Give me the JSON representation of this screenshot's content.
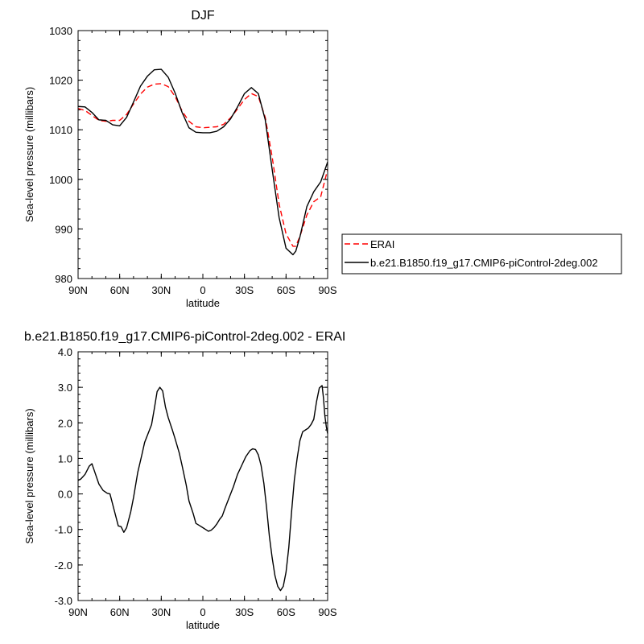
{
  "chart_data": [
    {
      "type": "line",
      "title": "DJF",
      "xlabel": "latitude",
      "ylabel": "Sea-level pressure (millibars)",
      "xlim": [
        -90,
        90
      ],
      "ylim": [
        980,
        1030
      ],
      "x_ticks": [
        -90,
        -60,
        -30,
        0,
        30,
        60,
        90
      ],
      "x_tick_labels": [
        "90N",
        "60N",
        "30N",
        "0",
        "30S",
        "60S",
        "90S"
      ],
      "y_ticks": [
        980,
        990,
        1000,
        1010,
        1020,
        1030
      ],
      "y_tick_labels": [
        "980",
        "990",
        "1000",
        "1010",
        "1020",
        "1030"
      ],
      "grid": false,
      "legend_position": "right",
      "series": [
        {
          "name": "ERAI",
          "color": "#ff0000",
          "dash": "dashed",
          "x": [
            -90,
            -85,
            -80,
            -75,
            -70,
            -65,
            -60,
            -55,
            -50,
            -45,
            -40,
            -35,
            -30,
            -25,
            -20,
            -15,
            -10,
            -5,
            0,
            5,
            10,
            15,
            20,
            25,
            30,
            35,
            40,
            45,
            50,
            55,
            60,
            65,
            67,
            70,
            75,
            80,
            85,
            90
          ],
          "y": [
            1014.3,
            1013.9,
            1012.9,
            1011.9,
            1011.7,
            1011.9,
            1011.9,
            1013.1,
            1015.2,
            1017.2,
            1018.6,
            1019.2,
            1019.3,
            1018.7,
            1016.7,
            1013.8,
            1011.7,
            1010.6,
            1010.4,
            1010.5,
            1010.6,
            1011.1,
            1012.4,
            1014.2,
            1016.1,
            1017.3,
            1016.7,
            1012.5,
            1004.5,
            995.0,
            989.0,
            986.5,
            986.5,
            988.5,
            992.8,
            995.5,
            996.5,
            1002.0
          ]
        },
        {
          "name": "b.e21.B1850.f19_g17.CMIP6-piControl-2deg.002",
          "color": "#000000",
          "dash": "solid",
          "x": [
            -90,
            -85,
            -80,
            -75,
            -70,
            -65,
            -60,
            -55,
            -50,
            -45,
            -40,
            -35,
            -30,
            -25,
            -20,
            -15,
            -10,
            -5,
            0,
            5,
            10,
            15,
            20,
            25,
            30,
            35,
            40,
            45,
            50,
            55,
            60,
            65,
            67,
            70,
            75,
            80,
            85,
            90
          ],
          "y": [
            1014.7,
            1014.6,
            1013.5,
            1012.0,
            1011.9,
            1011.0,
            1010.8,
            1012.5,
            1015.6,
            1018.8,
            1020.8,
            1022.1,
            1022.2,
            1020.6,
            1017.4,
            1013.5,
            1010.4,
            1009.5,
            1009.4,
            1009.4,
            1009.7,
            1010.6,
            1012.2,
            1014.6,
            1017.3,
            1018.5,
            1017.3,
            1012.0,
            1002.0,
            992.3,
            986.1,
            984.8,
            985.5,
            988.4,
            994.5,
            997.5,
            999.5,
            1003.5
          ]
        }
      ]
    },
    {
      "type": "line",
      "title": "b.e21.B1850.f19_g17.CMIP6-piControl-2deg.002 - ERAI",
      "xlabel": "latitude",
      "ylabel": "Sea-level pressure (millibars)",
      "xlim": [
        -90,
        90
      ],
      "ylim": [
        -3,
        4
      ],
      "x_ticks": [
        -90,
        -60,
        -30,
        0,
        30,
        60,
        90
      ],
      "x_tick_labels": [
        "90N",
        "60N",
        "30N",
        "0",
        "30S",
        "60S",
        "90S"
      ],
      "y_ticks": [
        -3,
        -2,
        -1,
        0,
        1,
        2,
        3,
        4
      ],
      "y_tick_labels": [
        "-3.0",
        "-2.0",
        "-1.0",
        "0.0",
        "1.0",
        "2.0",
        "3.0",
        "4.0"
      ],
      "grid": false,
      "series": [
        {
          "color": "#000000",
          "dash": "solid",
          "x": [
            -90,
            -88,
            -85,
            -82,
            -80,
            -78,
            -75,
            -72,
            -69,
            -67,
            -65,
            -63,
            -61,
            -59,
            -57,
            -55,
            -52,
            -50,
            -47,
            -44,
            -42,
            -40,
            -37,
            -35,
            -33,
            -31,
            -29,
            -27,
            -25,
            -22,
            -20,
            -17,
            -15,
            -12,
            -10,
            -7,
            -5,
            -2,
            0,
            2,
            4,
            6,
            8,
            10,
            12,
            14,
            16,
            19,
            22,
            25,
            28,
            31,
            34,
            36,
            38,
            40,
            42,
            44,
            46,
            48,
            50,
            52,
            54,
            56,
            58,
            60,
            62,
            64,
            66,
            68,
            70,
            72,
            74,
            76,
            78,
            80,
            82,
            84,
            86,
            87,
            88,
            89,
            90
          ],
          "y": [
            0.38,
            0.42,
            0.55,
            0.78,
            0.85,
            0.62,
            0.28,
            0.1,
            0.02,
            0.0,
            -0.3,
            -0.6,
            -0.9,
            -0.92,
            -1.08,
            -0.95,
            -0.5,
            -0.1,
            0.6,
            1.1,
            1.45,
            1.65,
            1.95,
            2.4,
            2.88,
            3.0,
            2.9,
            2.45,
            2.15,
            1.8,
            1.55,
            1.15,
            0.8,
            0.25,
            -0.2,
            -0.55,
            -0.83,
            -0.9,
            -0.95,
            -1.0,
            -1.05,
            -1.02,
            -0.95,
            -0.85,
            -0.72,
            -0.62,
            -0.4,
            -0.1,
            0.2,
            0.55,
            0.8,
            1.05,
            1.22,
            1.27,
            1.25,
            1.1,
            0.8,
            0.3,
            -0.4,
            -1.2,
            -1.8,
            -2.3,
            -2.6,
            -2.72,
            -2.6,
            -2.2,
            -1.5,
            -0.5,
            0.4,
            1.0,
            1.5,
            1.75,
            1.8,
            1.85,
            1.95,
            2.1,
            2.6,
            2.98,
            3.05,
            2.7,
            2.2,
            1.9,
            1.7
          ]
        }
      ]
    }
  ]
}
